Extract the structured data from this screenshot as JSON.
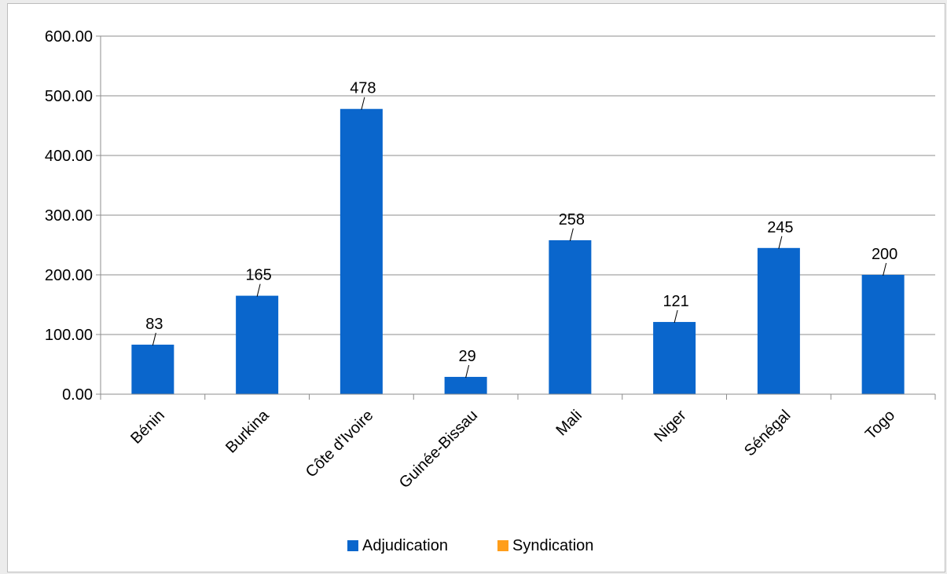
{
  "chart_data": {
    "type": "bar",
    "categories": [
      "Bénin",
      "Burkina",
      "Côte d'Ivoire",
      "Guinée-Bissau",
      "Mali",
      "Niger",
      "Sénégal",
      "Togo"
    ],
    "series": [
      {
        "name": "Adjudication",
        "color": "#0a66cc",
        "values": [
          83,
          165,
          478,
          29,
          258,
          121,
          245,
          200
        ]
      },
      {
        "name": "Syndication",
        "color": "#ff9e1b",
        "values": [
          0,
          0,
          0,
          0,
          0,
          0,
          0,
          0
        ]
      }
    ],
    "data_labels": [
      "83",
      "165",
      "478",
      "29",
      "258",
      "121",
      "245",
      "200"
    ],
    "ylim": [
      0,
      600
    ],
    "y_ticks": [
      {
        "value": 0,
        "label": "0.00"
      },
      {
        "value": 100,
        "label": "100.00"
      },
      {
        "value": 200,
        "label": "200.00"
      },
      {
        "value": 300,
        "label": "300.00"
      },
      {
        "value": 400,
        "label": "400.00"
      },
      {
        "value": 500,
        "label": "500.00"
      },
      {
        "value": 600,
        "label": "600.00"
      }
    ],
    "grid": true,
    "legend_position": "bottom",
    "title": "",
    "xlabel": "",
    "ylabel": ""
  }
}
